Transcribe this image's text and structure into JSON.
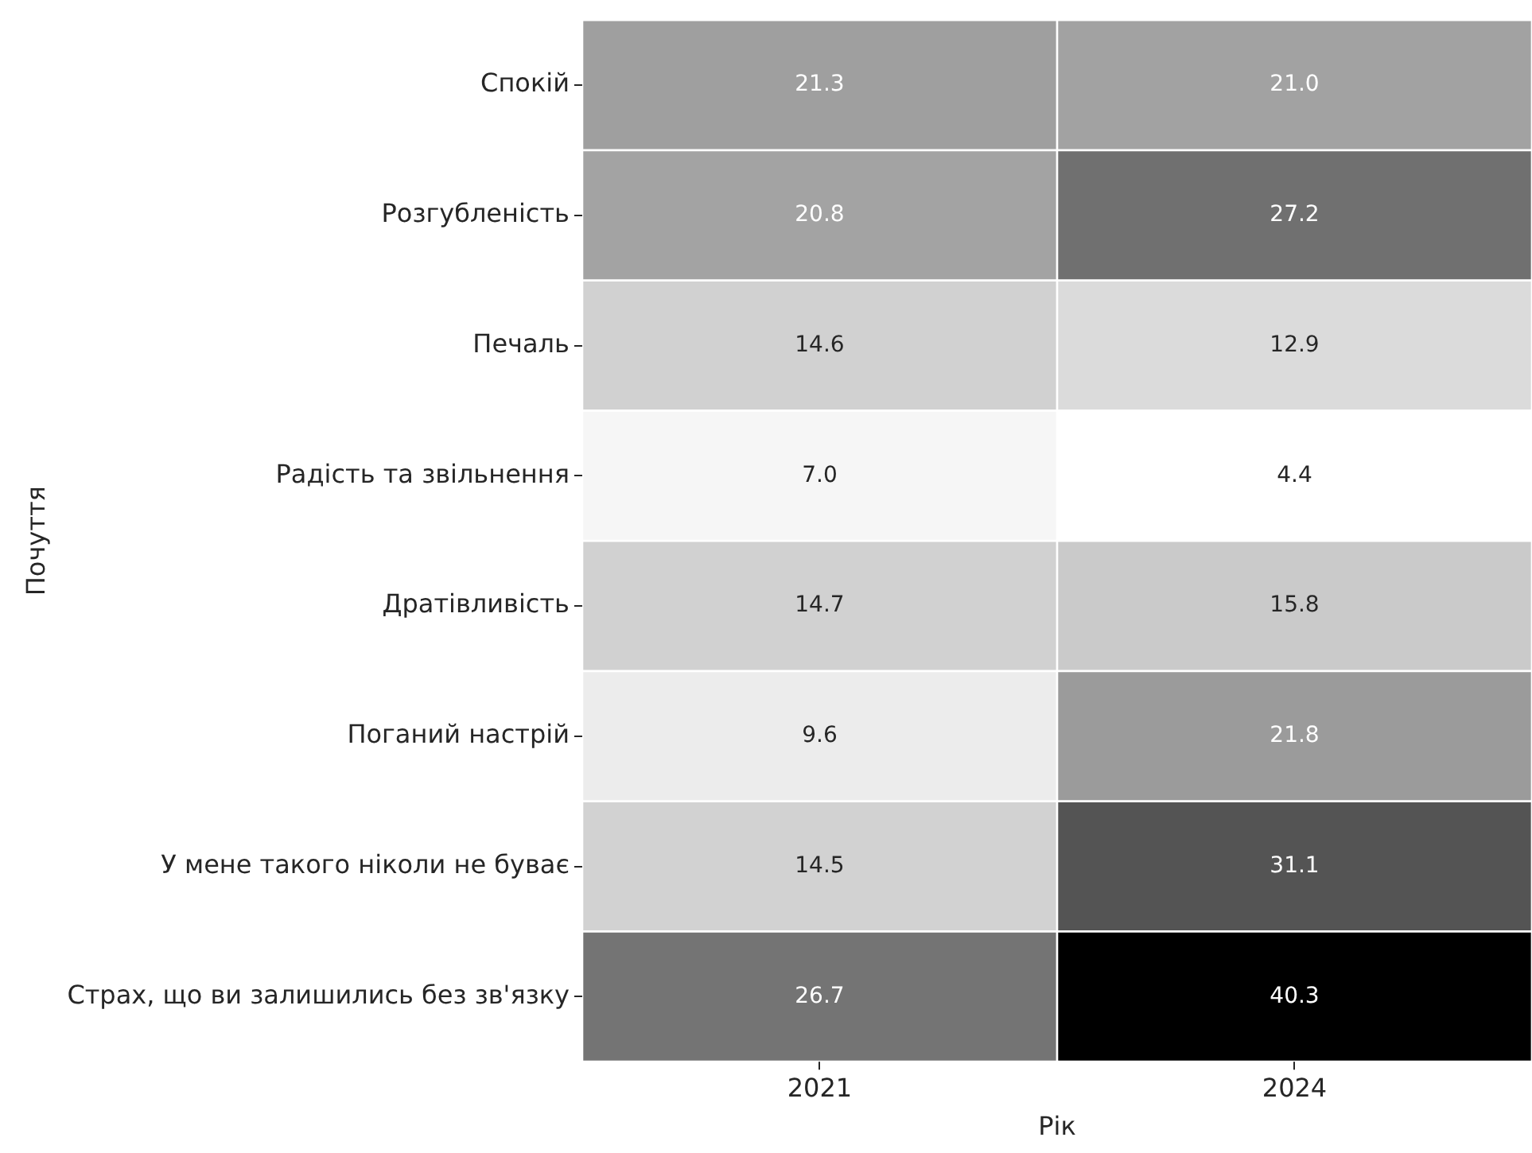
{
  "chart_data": {
    "type": "heatmap",
    "xlabel": "Рік",
    "ylabel": "Почуття",
    "categories": [
      "2021",
      "2024"
    ],
    "y_categories": [
      "Спокій",
      "Розгубленість",
      "Печаль",
      "Радість та звільнення",
      "Дратівливість",
      "Поганий настрій",
      "У мене такого ніколи не буває",
      "Страх, що ви залишились без зв'язку"
    ],
    "cells": [
      [
        21.3,
        21.0
      ],
      [
        20.8,
        27.2
      ],
      [
        14.6,
        12.9
      ],
      [
        7.0,
        4.4
      ],
      [
        14.7,
        15.8
      ],
      [
        9.6,
        21.8
      ],
      [
        14.5,
        31.1
      ],
      [
        26.7,
        40.3
      ]
    ],
    "cell_labels": [
      [
        "21.3",
        "21.0"
      ],
      [
        "20.8",
        "27.2"
      ],
      [
        "14.6",
        "12.9"
      ],
      [
        "7.0",
        "4.4"
      ],
      [
        "14.7",
        "15.8"
      ],
      [
        "9.6",
        "21.8"
      ],
      [
        "14.5",
        "31.1"
      ],
      [
        "26.7",
        "40.3"
      ]
    ],
    "data_labels": true
  }
}
